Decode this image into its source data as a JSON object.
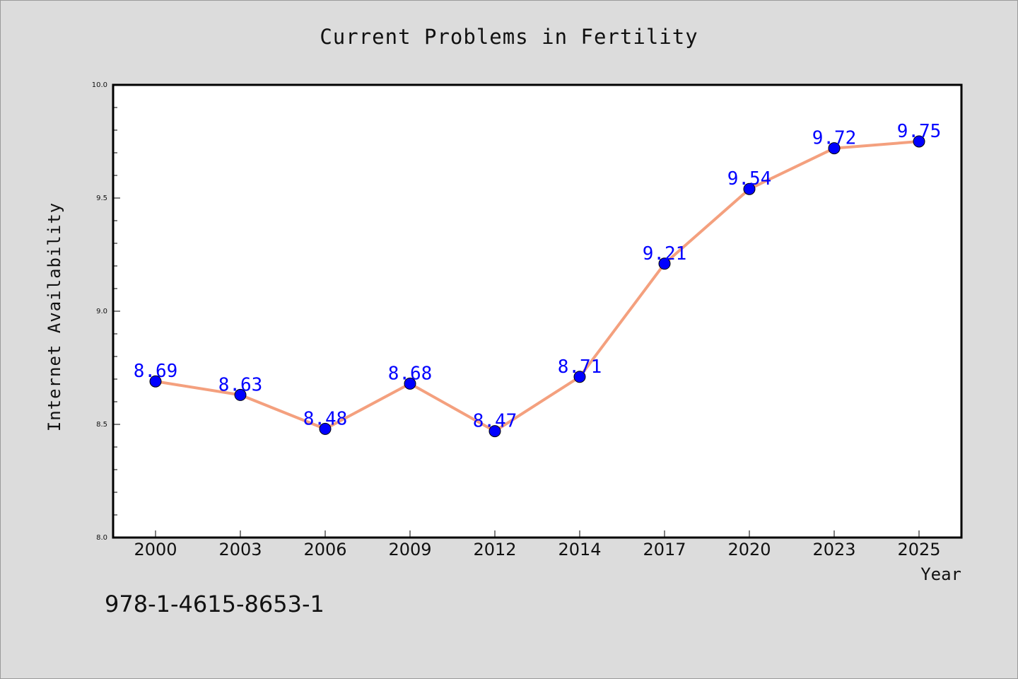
{
  "chart_data": {
    "type": "line",
    "title": "Current Problems in Fertility",
    "xlabel": "Year",
    "ylabel": "Internet Availability",
    "categories": [
      "2000",
      "2003",
      "2006",
      "2009",
      "2012",
      "2014",
      "2017",
      "2020",
      "2023",
      "2025"
    ],
    "series": [
      {
        "values": [
          8.69,
          8.63,
          8.48,
          8.68,
          8.47,
          8.71,
          9.21,
          9.54,
          9.72,
          9.75
        ]
      }
    ],
    "data_labels": [
      "8.69",
      "8.63",
      "8.48",
      "8.68",
      "8.47",
      "8.71",
      "9.21",
      "9.54",
      "9.72",
      "9.75"
    ],
    "ylim": [
      8.0,
      10.0
    ],
    "yticks": [
      "8.0",
      "8.5",
      "9.0",
      "9.5",
      "10.0"
    ],
    "line_color": "#f4a07e",
    "marker_color": "#0000ff",
    "grid": false
  },
  "annotation": "978-1-4615-8653-1"
}
